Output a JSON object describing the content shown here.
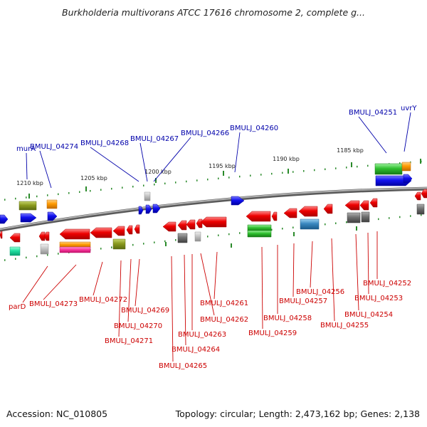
{
  "title": "Burkholderia multivorans ATCC 17616 chromosome 2, complete g...",
  "footer": {
    "accession": "Accession: NC_010805",
    "summary": "Topology: circular; Length: 2,473,162 bp; Genes: 2,138"
  },
  "colors": {
    "top_label": "#0000aa",
    "bottom_label": "#cc0000",
    "backbone": "#888888",
    "tick": "#2a8a2a"
  },
  "ticks": [
    "1210 kbp",
    "1205 kbp",
    "1200 kbp",
    "1195 kbp",
    "1190 kbp",
    "1185 kbp"
  ],
  "top_labels": [
    "murA",
    "BMULJ_04274",
    "BMULJ_04268",
    "BMULJ_04267",
    "BMULJ_04266",
    "BMULJ_04260",
    "BMULJ_04251",
    "uvrY"
  ],
  "bottom_labels": [
    "parD",
    "BMULJ_04273",
    "BMULJ_04272",
    "BMULJ_04269",
    "BMULJ_04270",
    "BMULJ_04271",
    "BMULJ_04265",
    "BMULJ_04264",
    "BMULJ_04263",
    "BMULJ_04262",
    "BMULJ_04261",
    "BMULJ_04259",
    "BMULJ_04258",
    "BMULJ_04257",
    "BMULJ_04256",
    "BMULJ_04255",
    "BMULJ_04254",
    "BMULJ_04253",
    "BMULJ_04252"
  ]
}
